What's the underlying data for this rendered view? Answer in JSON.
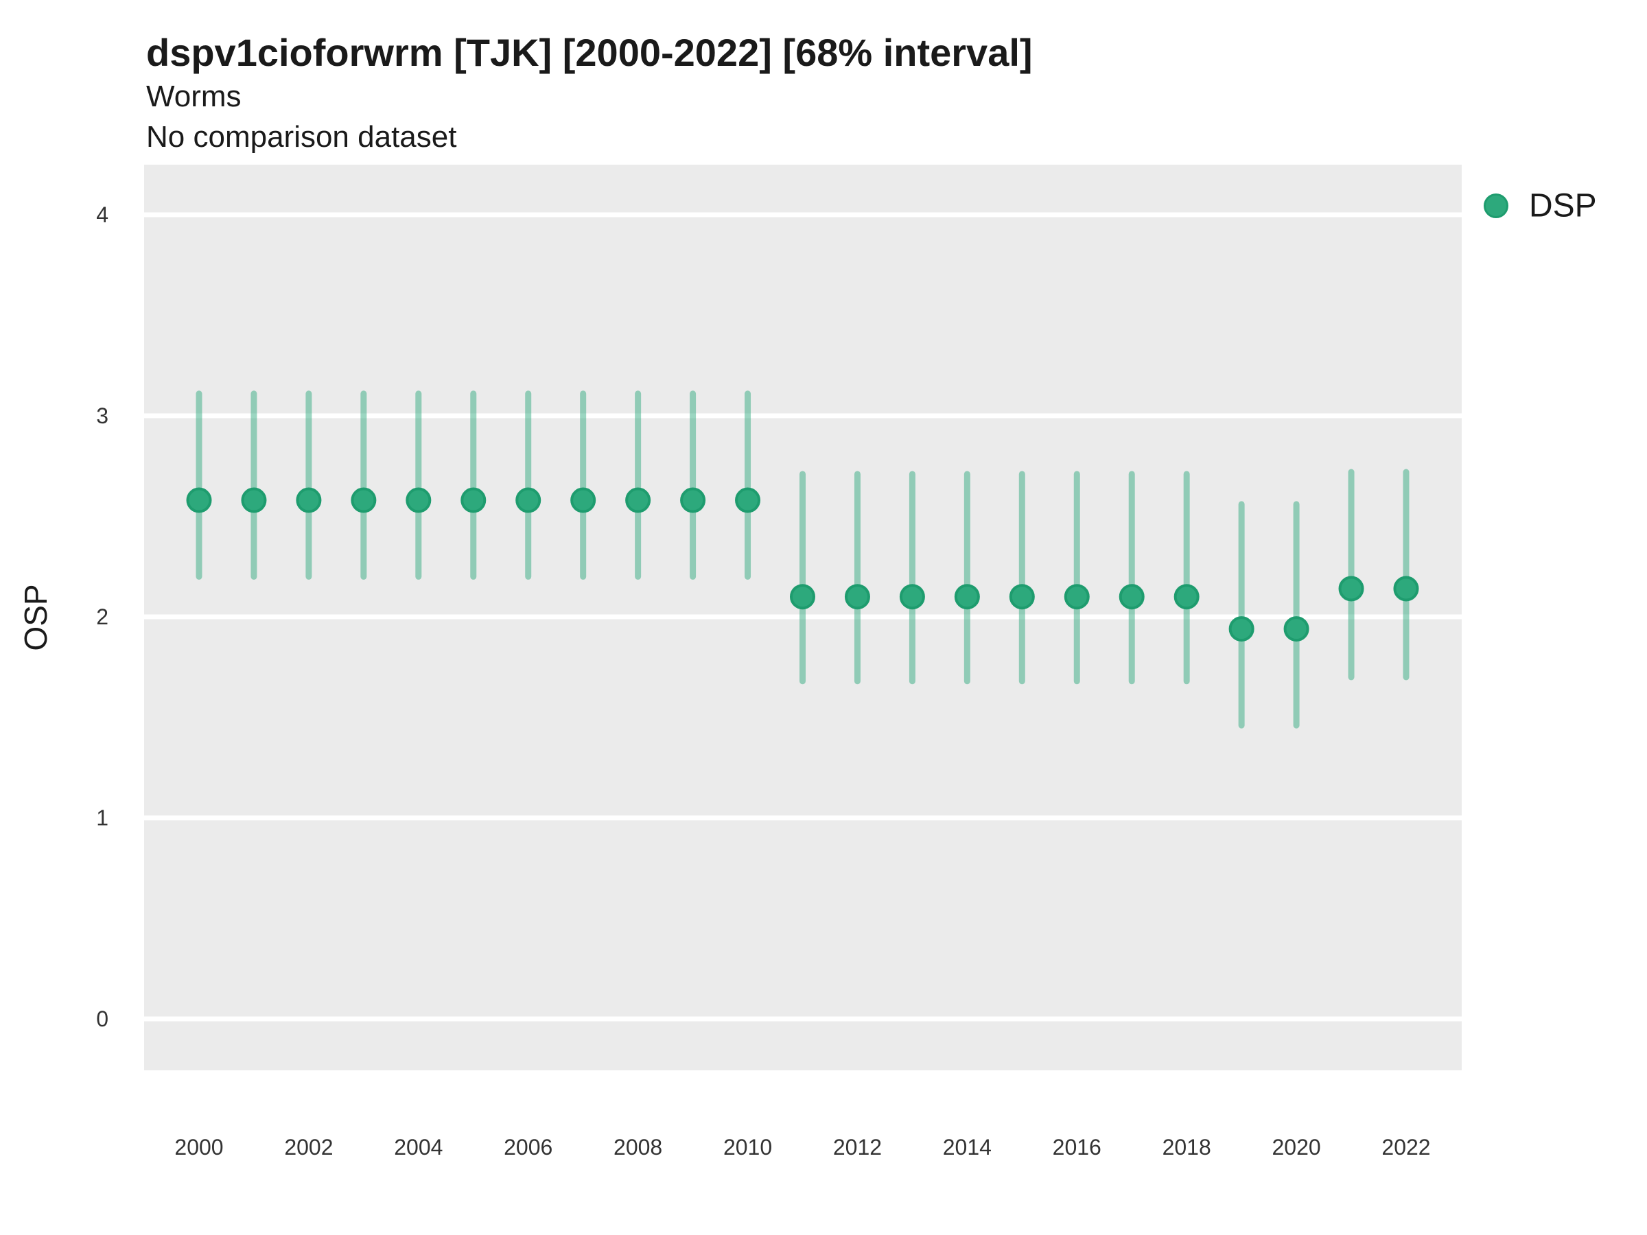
{
  "header": {
    "title": "dspv1cioforwrm [TJK] [2000-2022] [68% interval]",
    "subtitle_line1": "Worms",
    "subtitle_line2": "No comparison dataset"
  },
  "legend": {
    "label": "DSP",
    "marker_color": "#2DA97C",
    "marker_stroke": "#1E9C6E"
  },
  "axes": {
    "y_title": "OSP"
  },
  "colors": {
    "panel_background": "#EBEBEB",
    "gridline": "#FFFFFF",
    "point_fill": "#2DA97C",
    "point_stroke": "#1E9C6E",
    "interval_color": "#2BA87C",
    "interval_opacity": 0.47,
    "title_text": "#000000",
    "tick_text": "#333333"
  },
  "chart_data": {
    "type": "pointrange",
    "title": "dspv1cioforwrm [TJK] [2000-2022] [68% interval]",
    "subtitle": [
      "Worms",
      "No comparison dataset"
    ],
    "xlabel": "",
    "ylabel": "OSP",
    "interval": "68%",
    "grid": "horizontal-major-only",
    "legend_position": "right-top",
    "ylim": [
      -0.26,
      4.26
    ],
    "yticks": [
      4,
      3,
      2,
      1,
      0
    ],
    "xticks": [
      2000,
      2002,
      2004,
      2006,
      2008,
      2010,
      2012,
      2014,
      2016,
      2018,
      2020,
      2022
    ],
    "x": [
      2000,
      2001,
      2002,
      2003,
      2004,
      2005,
      2006,
      2007,
      2008,
      2009,
      2010,
      2011,
      2012,
      2013,
      2014,
      2015,
      2016,
      2017,
      2018,
      2019,
      2020,
      2021,
      2022
    ],
    "series": [
      {
        "name": "DSP",
        "values": [
          2.58,
          2.58,
          2.58,
          2.58,
          2.58,
          2.58,
          2.58,
          2.58,
          2.58,
          2.58,
          2.58,
          2.1,
          2.1,
          2.1,
          2.1,
          2.1,
          2.1,
          2.1,
          2.1,
          1.94,
          1.94,
          2.14,
          2.14
        ],
        "lower": [
          2.2,
          2.2,
          2.2,
          2.2,
          2.2,
          2.2,
          2.2,
          2.2,
          2.2,
          2.2,
          2.2,
          1.68,
          1.68,
          1.68,
          1.68,
          1.68,
          1.68,
          1.68,
          1.68,
          1.46,
          1.46,
          1.7,
          1.7
        ],
        "upper": [
          3.11,
          3.11,
          3.11,
          3.11,
          3.11,
          3.11,
          3.11,
          3.11,
          3.11,
          3.11,
          3.11,
          2.71,
          2.71,
          2.71,
          2.71,
          2.71,
          2.71,
          2.71,
          2.71,
          2.56,
          2.56,
          2.72,
          2.72
        ]
      }
    ]
  }
}
